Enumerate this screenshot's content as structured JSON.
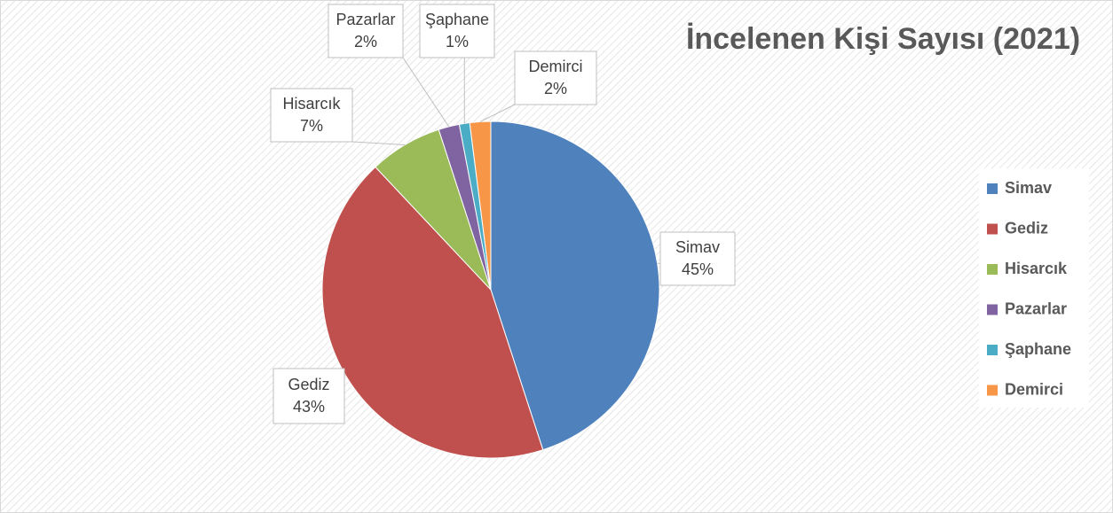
{
  "chart_data": {
    "type": "pie",
    "title": "İncelenen Kişi Sayısı (2021)",
    "categories": [
      "Simav",
      "Gediz",
      "Hisarcık",
      "Pazarlar",
      "Şaphane",
      "Demirci"
    ],
    "values": [
      45,
      43,
      7,
      2,
      1,
      2
    ],
    "value_labels": [
      "45%",
      "43%",
      "7%",
      "2%",
      "1%",
      "2%"
    ],
    "colors": [
      "#4f81bd",
      "#c0504d",
      "#9bbb59",
      "#8064a2",
      "#4bacc6",
      "#f79646"
    ],
    "legend": "right"
  }
}
